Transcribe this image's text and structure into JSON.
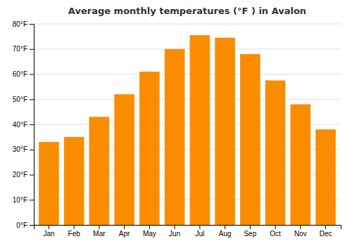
{
  "chart_data": {
    "type": "bar",
    "title": "Average monthly temperatures (°F ) in Avalon",
    "categories": [
      "Jan",
      "Feb",
      "Mar",
      "Apr",
      "May",
      "Jun",
      "Jul",
      "Aug",
      "Sep",
      "Oct",
      "Nov",
      "Dec"
    ],
    "values": [
      33,
      35,
      43,
      52,
      61,
      70,
      75.5,
      74.5,
      68,
      57.5,
      48,
      38
    ],
    "color": "#FB8C00",
    "ylim": [
      0,
      80
    ],
    "yticks": [
      {
        "value": 0,
        "label": "0°F"
      },
      {
        "value": 10,
        "label": "10°F"
      },
      {
        "value": 20,
        "label": "20°F"
      },
      {
        "value": 30,
        "label": "30°F"
      },
      {
        "value": 40,
        "label": "40°F"
      },
      {
        "value": 50,
        "label": "50°F"
      },
      {
        "value": 60,
        "label": "60°F"
      },
      {
        "value": 70,
        "label": "70°F"
      },
      {
        "value": 80,
        "label": "80°F"
      }
    ],
    "grid": true
  }
}
